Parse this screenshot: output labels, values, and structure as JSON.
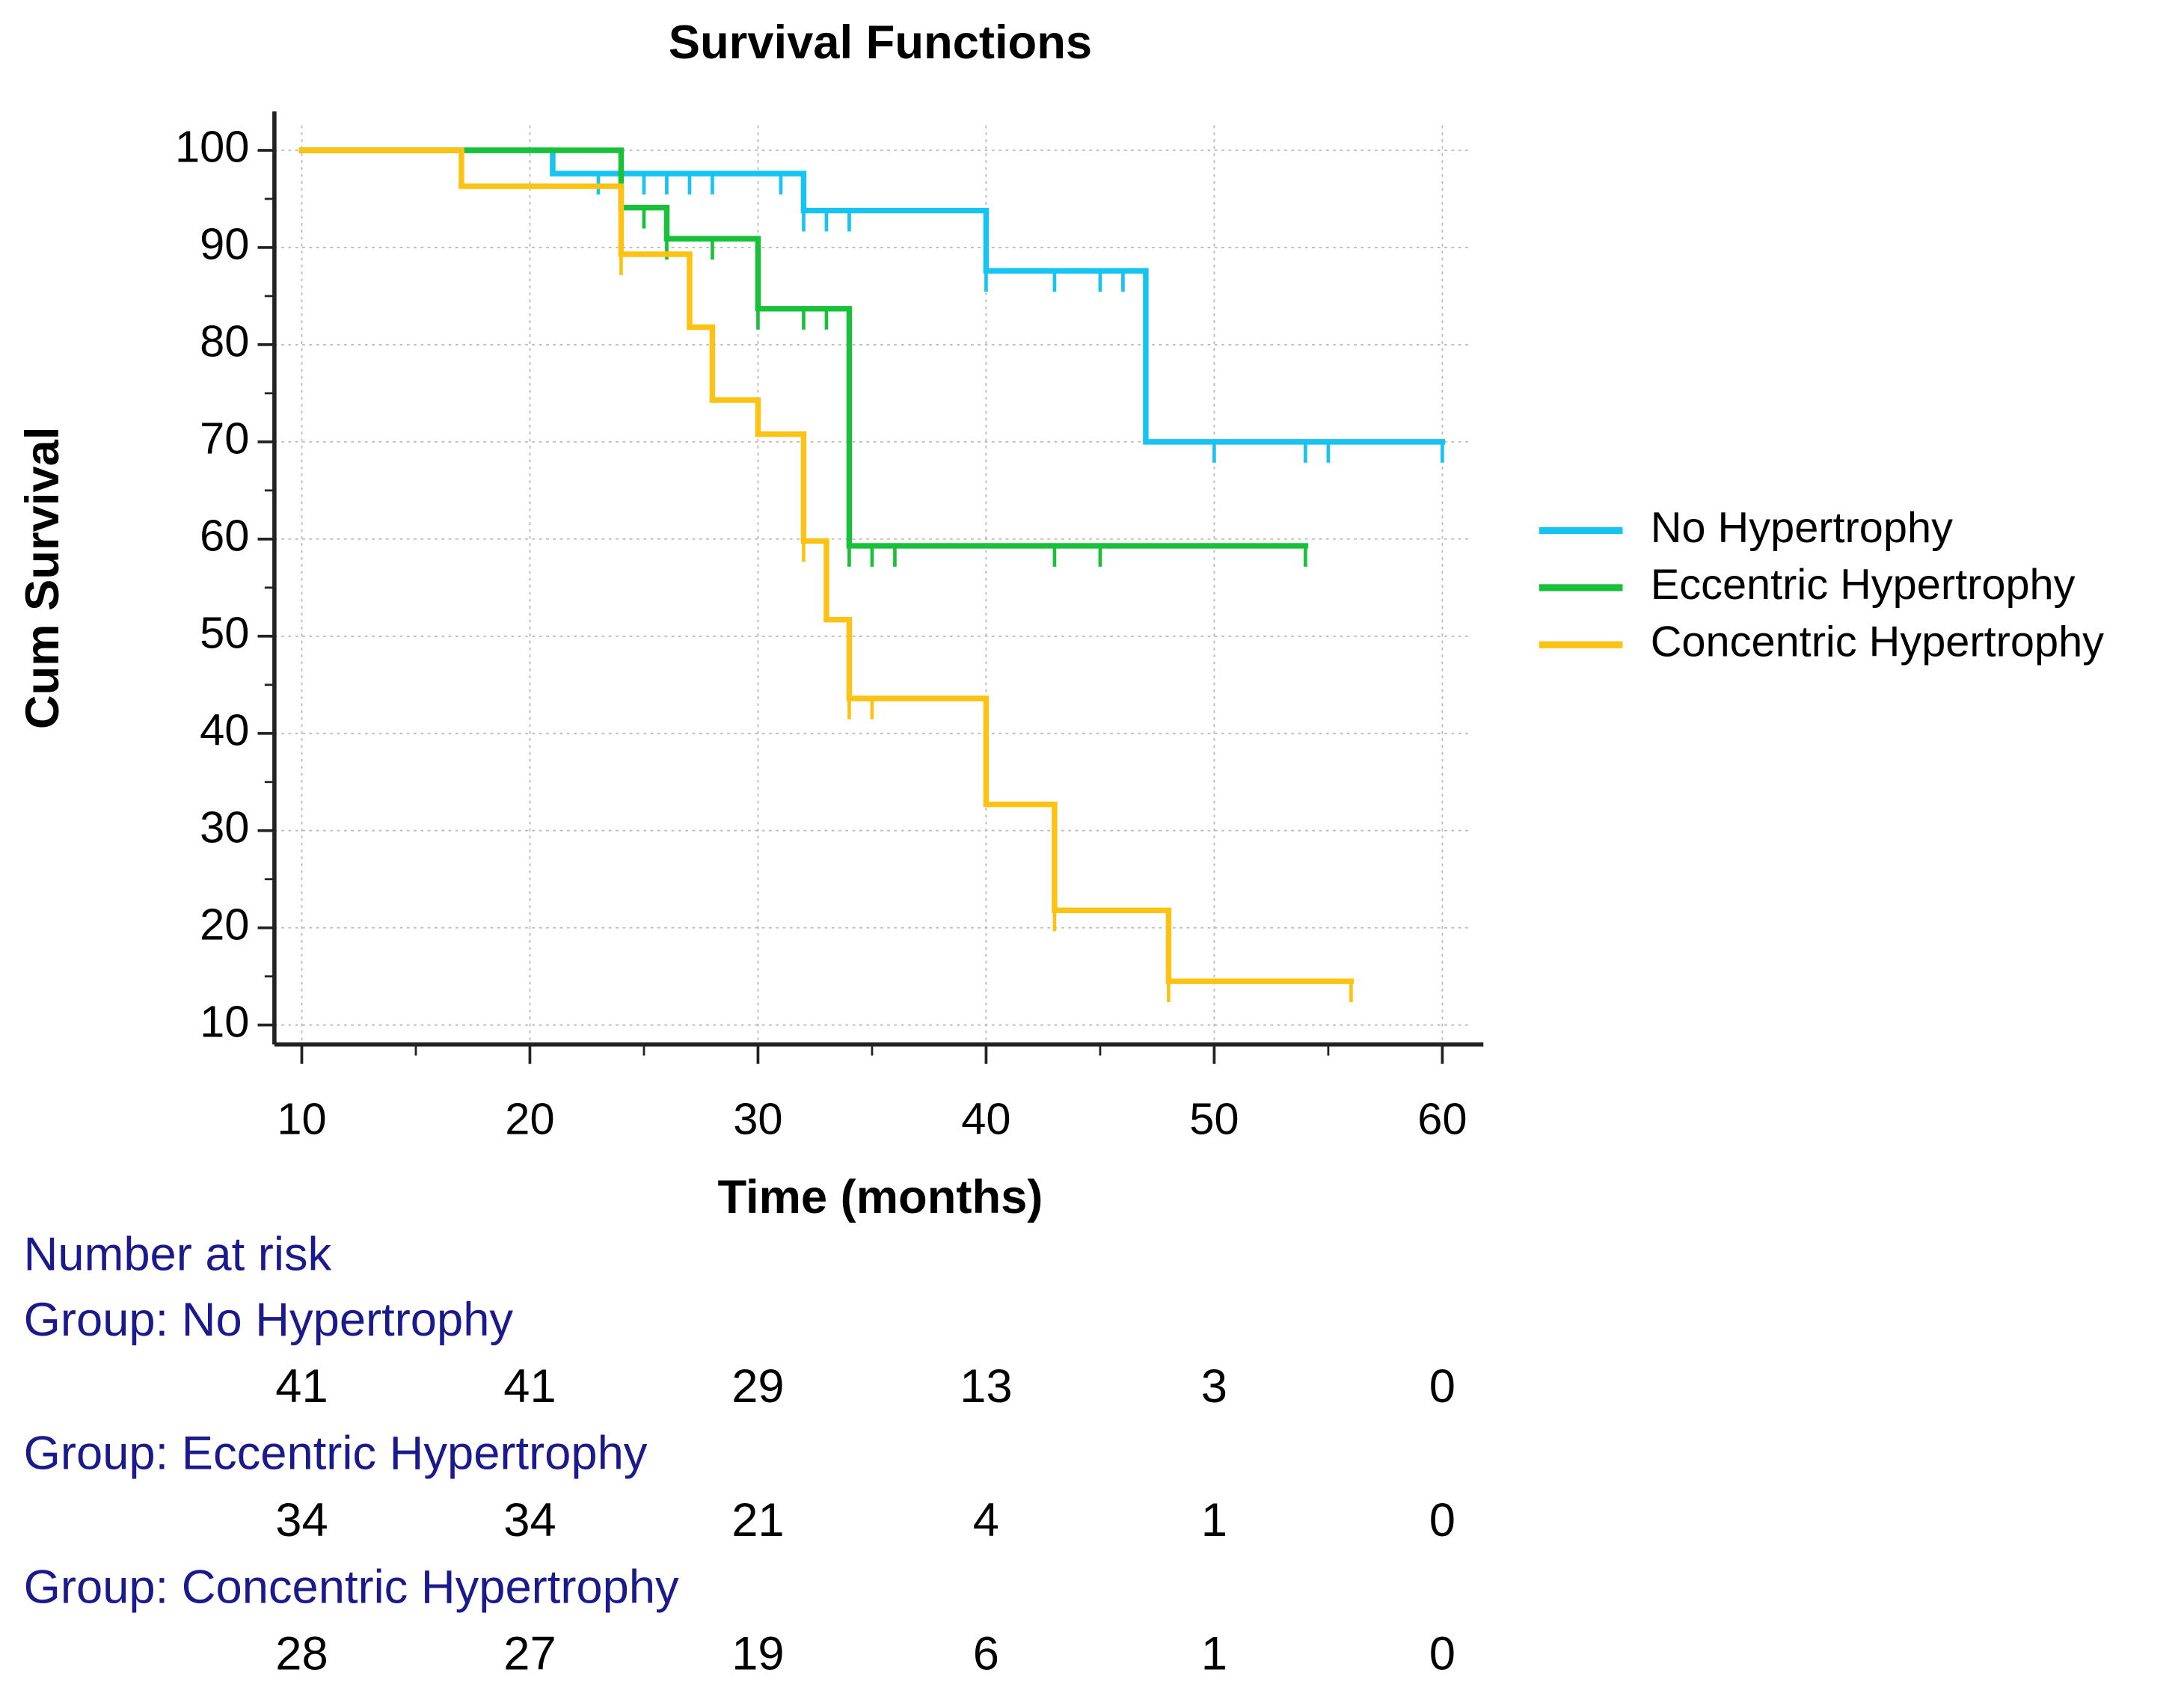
{
  "chart_data": {
    "type": "step",
    "title": "Survival Functions",
    "x_label": "Time (months)",
    "y_label": "Cum Survival",
    "xlim": [
      8.8,
      61.8
    ],
    "xticks": [
      10,
      20,
      30,
      40,
      50,
      60
    ],
    "ylim": [
      8,
      104
    ],
    "yticks": [
      10,
      20,
      30,
      40,
      50,
      60,
      70,
      80,
      90,
      100
    ],
    "grid": true,
    "legend": "right",
    "series": [
      {
        "name": "No Hypertrophy",
        "color": "#17c3f0",
        "x": [
          10,
          21,
          32,
          40,
          47,
          60
        ],
        "values": [
          100,
          97.6,
          93.8,
          87.6,
          70,
          70
        ],
        "censored": [
          23,
          24,
          25,
          26,
          27,
          28,
          31,
          32,
          33,
          34,
          40,
          43,
          45,
          46,
          50,
          54,
          55,
          60
        ]
      },
      {
        "name": "Eccentric Hypertrophy",
        "color": "#19c13a",
        "x": [
          10,
          24,
          26,
          30,
          34,
          54
        ],
        "values": [
          100,
          94.1,
          90.9,
          83.7,
          59.3,
          59.3
        ],
        "censored": [
          25,
          26,
          28,
          30,
          32,
          33,
          34,
          35,
          36,
          43,
          45,
          54
        ]
      },
      {
        "name": "Concentric Hypertrophy",
        "color": "#fcc314",
        "x": [
          10,
          17,
          24,
          27,
          28,
          30,
          32,
          33,
          34,
          40,
          43,
          48,
          56
        ],
        "values": [
          100,
          96.3,
          89.3,
          81.8,
          74.3,
          70.8,
          59.8,
          51.7,
          43.6,
          32.7,
          21.8,
          14.5,
          14.5
        ],
        "censored": [
          24,
          32,
          34,
          35,
          43,
          48,
          56
        ]
      }
    ]
  },
  "risk_table": {
    "title": "Number at risk",
    "groups": [
      {
        "label": "Group: No Hypertrophy",
        "counts": [
          41,
          41,
          29,
          13,
          3,
          0
        ]
      },
      {
        "label": "Group: Eccentric Hypertrophy",
        "counts": [
          34,
          34,
          21,
          4,
          1,
          0
        ]
      },
      {
        "label": "Group: Concentric Hypertrophy",
        "counts": [
          28,
          27,
          19,
          6,
          1,
          0
        ]
      }
    ]
  }
}
